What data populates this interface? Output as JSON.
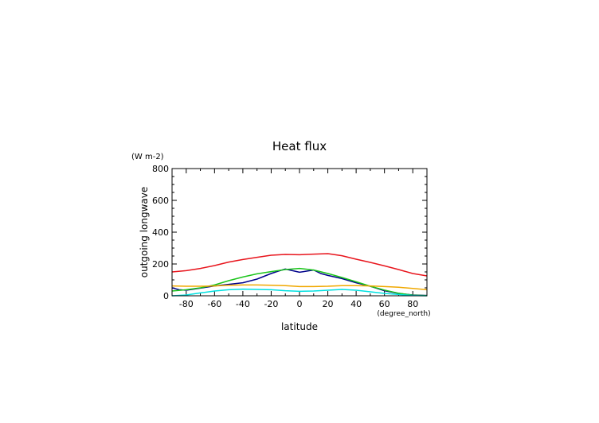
{
  "chart_data": {
    "type": "line",
    "title": "Heat flux",
    "xlabel": "latitude",
    "xunit": "(degree_north)",
    "ylabel": "outgoing longwave",
    "yunit": "(W m-2)",
    "xlim": [
      -90,
      90
    ],
    "ylim": [
      0,
      800
    ],
    "xticks": [
      -80,
      -60,
      -40,
      -20,
      0,
      20,
      40,
      60,
      80
    ],
    "yticks": [
      0,
      200,
      400,
      600,
      800
    ],
    "grid": false,
    "series": [
      {
        "color": "#e8141c",
        "x": [
          -90,
          -80,
          -70,
          -60,
          -50,
          -40,
          -30,
          -20,
          -10,
          0,
          10,
          20,
          30,
          40,
          50,
          60,
          70,
          80,
          90
        ],
        "y": [
          150,
          158,
          172,
          190,
          212,
          228,
          242,
          255,
          260,
          258,
          262,
          265,
          252,
          230,
          210,
          188,
          165,
          140,
          125
        ]
      },
      {
        "color": "#00008b",
        "x": [
          -90,
          -85,
          -80,
          -70,
          -60,
          -50,
          -40,
          -30,
          -20,
          -15,
          -10,
          -5,
          0,
          5,
          10,
          15,
          20,
          30,
          40,
          50,
          60,
          70,
          80,
          90
        ],
        "y": [
          50,
          38,
          35,
          48,
          62,
          72,
          82,
          105,
          140,
          155,
          168,
          158,
          148,
          155,
          162,
          140,
          128,
          108,
          82,
          60,
          32,
          15,
          5,
          2
        ]
      },
      {
        "color": "#1bc41b",
        "x": [
          -90,
          -80,
          -70,
          -60,
          -50,
          -40,
          -30,
          -20,
          -10,
          0,
          10,
          20,
          30,
          40,
          50,
          60,
          70,
          80,
          90
        ],
        "y": [
          30,
          38,
          50,
          68,
          95,
          118,
          138,
          152,
          165,
          172,
          162,
          140,
          115,
          88,
          60,
          36,
          16,
          4,
          1
        ]
      },
      {
        "color": "#f0a800",
        "x": [
          -90,
          -80,
          -70,
          -60,
          -50,
          -40,
          -30,
          -20,
          -10,
          0,
          10,
          20,
          30,
          40,
          50,
          60,
          70,
          80,
          90
        ],
        "y": [
          62,
          60,
          60,
          62,
          66,
          68,
          68,
          66,
          64,
          58,
          58,
          60,
          64,
          64,
          62,
          58,
          54,
          46,
          38
        ]
      },
      {
        "color": "#00e0e0",
        "x": [
          -90,
          -80,
          -70,
          -60,
          -50,
          -40,
          -30,
          -20,
          -10,
          0,
          10,
          20,
          30,
          40,
          50,
          60,
          70,
          80,
          90
        ],
        "y": [
          0,
          5,
          18,
          30,
          38,
          42,
          40,
          38,
          32,
          28,
          30,
          35,
          40,
          35,
          25,
          15,
          8,
          2,
          0
        ]
      }
    ]
  }
}
